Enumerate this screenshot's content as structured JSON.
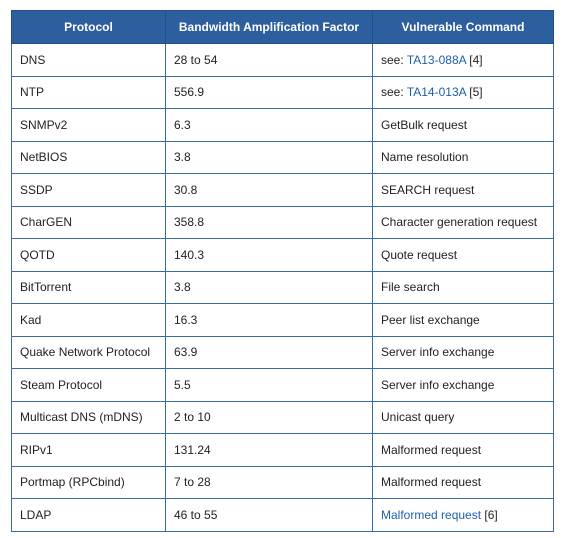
{
  "table": {
    "headers": [
      "Protocol",
      "Bandwidth Amplification Factor",
      "Vulnerable Command"
    ],
    "rows": [
      {
        "protocol": "DNS",
        "factor": "28 to 54",
        "command": {
          "prefix": "see: ",
          "link": "TA13-088A",
          "suffix": " [4]"
        }
      },
      {
        "protocol": "NTP",
        "factor": "556.9",
        "command": {
          "prefix": "see: ",
          "link": "TA14-013A",
          "suffix": " [5]"
        }
      },
      {
        "protocol": "SNMPv2",
        "factor": "6.3",
        "command": {
          "prefix": "GetBulk request",
          "link": "",
          "suffix": ""
        }
      },
      {
        "protocol": "NetBIOS",
        "factor": "3.8",
        "command": {
          "prefix": "Name resolution",
          "link": "",
          "suffix": ""
        }
      },
      {
        "protocol": "SSDP",
        "factor": "30.8",
        "command": {
          "prefix": "SEARCH request",
          "link": "",
          "suffix": ""
        }
      },
      {
        "protocol": "CharGEN",
        "factor": "358.8",
        "command": {
          "prefix": "Character generation request",
          "link": "",
          "suffix": ""
        }
      },
      {
        "protocol": "QOTD",
        "factor": "140.3",
        "command": {
          "prefix": "Quote request",
          "link": "",
          "suffix": ""
        }
      },
      {
        "protocol": "BitTorrent",
        "factor": "3.8",
        "command": {
          "prefix": "File search",
          "link": "",
          "suffix": ""
        }
      },
      {
        "protocol": "Kad",
        "factor": "16.3",
        "command": {
          "prefix": "Peer list exchange",
          "link": "",
          "suffix": ""
        }
      },
      {
        "protocol": "Quake Network Protocol",
        "factor": "63.9",
        "command": {
          "prefix": "Server info exchange",
          "link": "",
          "suffix": ""
        }
      },
      {
        "protocol": "Steam Protocol",
        "factor": "5.5",
        "command": {
          "prefix": "Server info exchange",
          "link": "",
          "suffix": ""
        }
      },
      {
        "protocol": "Multicast DNS (mDNS)",
        "factor": "2 to 10",
        "command": {
          "prefix": "Unicast query",
          "link": "",
          "suffix": ""
        }
      },
      {
        "protocol": "RIPv1",
        "factor": "131.24",
        "command": {
          "prefix": "Malformed request",
          "link": "",
          "suffix": ""
        }
      },
      {
        "protocol": "Portmap (RPCbind)",
        "factor": "7 to 28",
        "command": {
          "prefix": "Malformed request",
          "link": "",
          "suffix": ""
        }
      },
      {
        "protocol": "LDAP",
        "factor": "46 to 55",
        "command": {
          "prefix": "",
          "link": "Malformed request",
          "suffix": " [6]"
        }
      }
    ]
  },
  "colors": {
    "header_bg": "#2d5e9e",
    "header_text": "#ffffff",
    "border": "#3a6aa8",
    "link": "#1f5fae"
  }
}
